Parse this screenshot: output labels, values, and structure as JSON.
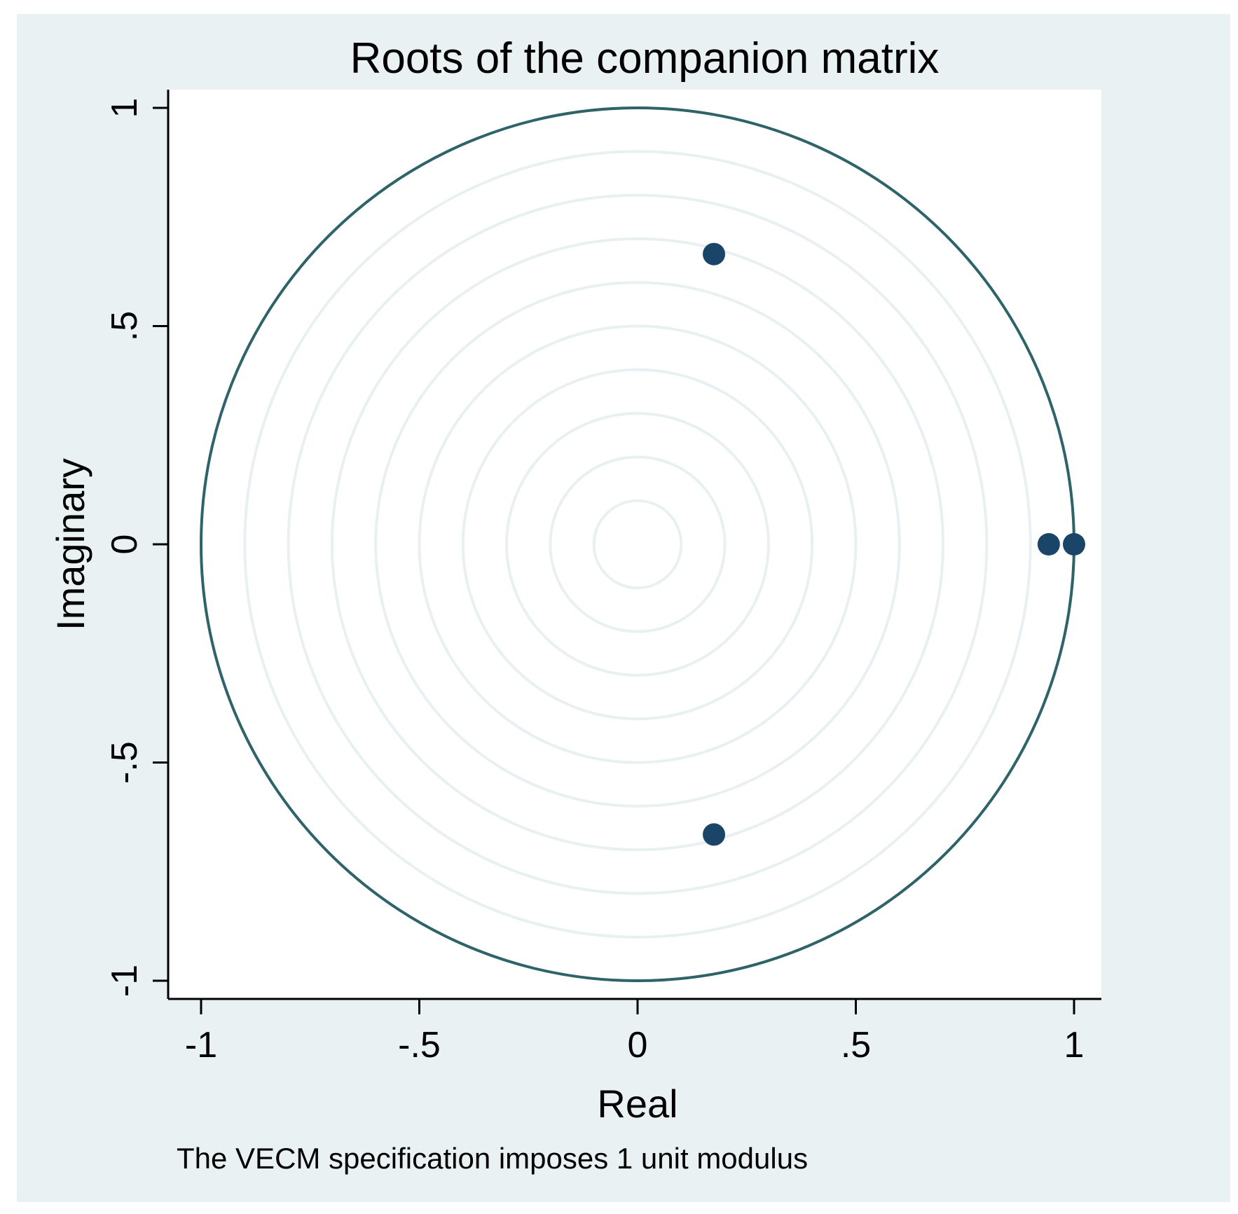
{
  "chart_data": {
    "type": "scatter",
    "title": "Roots of the companion matrix",
    "xlabel": "Real",
    "ylabel": "Imaginary",
    "note": "The VECM specification imposes 1 unit modulus",
    "xlim": [
      -1.06,
      1.06
    ],
    "ylim": [
      -1.06,
      1.06
    ],
    "xticks": [
      {
        "value": -1,
        "label": "-1"
      },
      {
        "value": -0.5,
        "label": "-.5"
      },
      {
        "value": 0,
        "label": "0"
      },
      {
        "value": 0.5,
        "label": ".5"
      },
      {
        "value": 1,
        "label": "1"
      }
    ],
    "yticks": [
      {
        "value": -1,
        "label": "-1"
      },
      {
        "value": -0.5,
        "label": "-.5"
      },
      {
        "value": 0,
        "label": "0"
      },
      {
        "value": 0.5,
        "label": ".5"
      },
      {
        "value": 1,
        "label": "1"
      }
    ],
    "unit_circle": true,
    "reference_circles": [
      0.1,
      0.2,
      0.3,
      0.4,
      0.5,
      0.6,
      0.7,
      0.8,
      0.9
    ],
    "points": [
      {
        "x": 0.175,
        "y": 0.665
      },
      {
        "x": 0.175,
        "y": -0.665
      },
      {
        "x": 0.942,
        "y": 0
      },
      {
        "x": 1.0,
        "y": 0
      }
    ],
    "colors": {
      "background": "#eaf1f3",
      "plot_area": "#ffffff",
      "unit_circle": "#2e6369",
      "reference_circles": "#e8f0f2",
      "points": "#1a4468",
      "axes": "#000000"
    }
  }
}
